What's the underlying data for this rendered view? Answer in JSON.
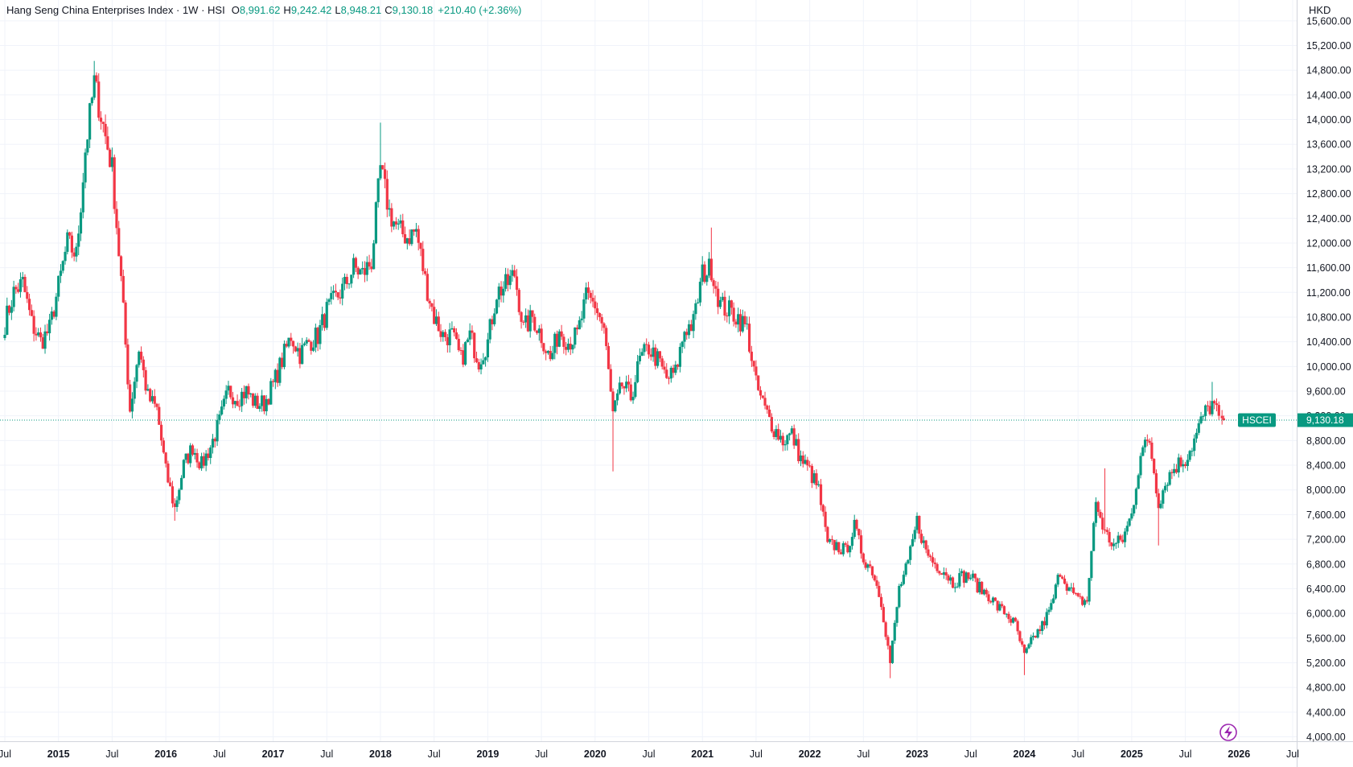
{
  "header": {
    "title": "Hang Seng China Enterprises Index · 1W · HSI",
    "open_key": "O",
    "open": "8,991.62",
    "high_key": "H",
    "high": "9,242.42",
    "low_key": "L",
    "low": "8,948.21",
    "close_key": "C",
    "close": "9,130.18",
    "change": "+210.40 (+2.36%)",
    "currency": "HKD"
  },
  "price_tag": {
    "symbol": "HSCEI",
    "value": 9130.18,
    "label": "9,130.18",
    "color": "#089981"
  },
  "colors": {
    "up": "#089981",
    "down": "#f23645",
    "grid": "#f0f3fa",
    "accent": "#9c27b0"
  },
  "chart_data": {
    "type": "candlestick",
    "interval": "1W",
    "x_range": [
      "2014-07",
      "2026-07"
    ],
    "ylim": [
      4000,
      15800
    ],
    "y_ticks": [
      4000,
      4400,
      4800,
      5200,
      5600,
      6000,
      6400,
      6800,
      7200,
      7600,
      8000,
      8400,
      8800,
      9200,
      9600,
      10000,
      10400,
      10800,
      11200,
      11600,
      12000,
      12400,
      12800,
      13200,
      13600,
      14000,
      14400,
      14800,
      15200,
      15600
    ],
    "y_tick_labels": [
      "4,000.00",
      "4,400.00",
      "4,800.00",
      "5,200.00",
      "5,600.00",
      "6,000.00",
      "6,400.00",
      "6,800.00",
      "7,200.00",
      "7,600.00",
      "8,000.00",
      "8,400.00",
      "8,800.00",
      "9,200.00",
      "9,600.00",
      "10,000.00",
      "10,400.00",
      "10,800.00",
      "11,200.00",
      "11,600.00",
      "12,000.00",
      "12,400.00",
      "12,800.00",
      "13,200.00",
      "13,600.00",
      "14,000.00",
      "14,400.00",
      "14,800.00",
      "15,200.00",
      "15,600.00"
    ],
    "x_ticks": [
      {
        "date": "2014-07",
        "label": "Jul",
        "year": false
      },
      {
        "date": "2015-01",
        "label": "2015",
        "year": true
      },
      {
        "date": "2015-07",
        "label": "Jul",
        "year": false
      },
      {
        "date": "2016-01",
        "label": "2016",
        "year": true
      },
      {
        "date": "2016-07",
        "label": "Jul",
        "year": false
      },
      {
        "date": "2017-01",
        "label": "2017",
        "year": true
      },
      {
        "date": "2017-07",
        "label": "Jul",
        "year": false
      },
      {
        "date": "2018-01",
        "label": "2018",
        "year": true
      },
      {
        "date": "2018-07",
        "label": "Jul",
        "year": false
      },
      {
        "date": "2019-01",
        "label": "2019",
        "year": true
      },
      {
        "date": "2019-07",
        "label": "Jul",
        "year": false
      },
      {
        "date": "2020-01",
        "label": "2020",
        "year": true
      },
      {
        "date": "2020-07",
        "label": "Jul",
        "year": false
      },
      {
        "date": "2021-01",
        "label": "2021",
        "year": true
      },
      {
        "date": "2021-07",
        "label": "Jul",
        "year": false
      },
      {
        "date": "2022-01",
        "label": "2022",
        "year": true
      },
      {
        "date": "2022-07",
        "label": "Jul",
        "year": false
      },
      {
        "date": "2023-01",
        "label": "2023",
        "year": true
      },
      {
        "date": "2023-07",
        "label": "Jul",
        "year": false
      },
      {
        "date": "2024-01",
        "label": "2024",
        "year": true
      },
      {
        "date": "2024-07",
        "label": "Jul",
        "year": false
      },
      {
        "date": "2025-01",
        "label": "2025",
        "year": true
      },
      {
        "date": "2025-07",
        "label": "Jul",
        "year": false
      },
      {
        "date": "2026-01",
        "label": "2026",
        "year": true
      },
      {
        "date": "2026-07",
        "label": "Jul",
        "year": false
      }
    ],
    "close_path": [
      [
        "2014-07",
        10700
      ],
      [
        "2014-08",
        11200
      ],
      [
        "2014-09",
        11350
      ],
      [
        "2014-10",
        10700
      ],
      [
        "2014-11",
        10400
      ],
      [
        "2014-12",
        10600
      ],
      [
        "2015-01",
        11300
      ],
      [
        "2015-02",
        12000
      ],
      [
        "2015-03",
        11800
      ],
      [
        "2015-04",
        13500
      ],
      [
        "2015-05",
        14600
      ],
      [
        "2015-06",
        13900
      ],
      [
        "2015-07",
        13200
      ],
      [
        "2015-08",
        11400
      ],
      [
        "2015-09",
        9300
      ],
      [
        "2015-10",
        10300
      ],
      [
        "2015-11",
        9500
      ],
      [
        "2015-12",
        9300
      ],
      [
        "2016-01",
        8300
      ],
      [
        "2016-02",
        7700
      ],
      [
        "2016-03",
        8400
      ],
      [
        "2016-04",
        8700
      ],
      [
        "2016-05",
        8400
      ],
      [
        "2016-06",
        8700
      ],
      [
        "2016-07",
        9100
      ],
      [
        "2016-08",
        9600
      ],
      [
        "2016-09",
        9500
      ],
      [
        "2016-10",
        9600
      ],
      [
        "2016-11",
        9400
      ],
      [
        "2016-12",
        9400
      ],
      [
        "2017-01",
        9700
      ],
      [
        "2017-02",
        10100
      ],
      [
        "2017-03",
        10500
      ],
      [
        "2017-04",
        10200
      ],
      [
        "2017-05",
        10400
      ],
      [
        "2017-06",
        10500
      ],
      [
        "2017-07",
        10900
      ],
      [
        "2017-08",
        11100
      ],
      [
        "2017-09",
        11300
      ],
      [
        "2017-10",
        11600
      ],
      [
        "2017-11",
        11500
      ],
      [
        "2017-12",
        11700
      ],
      [
        "2018-01",
        13200
      ],
      [
        "2018-02",
        12500
      ],
      [
        "2018-03",
        12200
      ],
      [
        "2018-04",
        12100
      ],
      [
        "2018-05",
        12200
      ],
      [
        "2018-06",
        11400
      ],
      [
        "2018-07",
        10800
      ],
      [
        "2018-08",
        10500
      ],
      [
        "2018-09",
        10500
      ],
      [
        "2018-10",
        10100
      ],
      [
        "2018-11",
        10500
      ],
      [
        "2018-12",
        10100
      ],
      [
        "2019-01",
        10400
      ],
      [
        "2019-02",
        11200
      ],
      [
        "2019-03",
        11300
      ],
      [
        "2019-04",
        11500
      ],
      [
        "2019-05",
        10600
      ],
      [
        "2019-06",
        10800
      ],
      [
        "2019-07",
        10500
      ],
      [
        "2019-08",
        10100
      ],
      [
        "2019-09",
        10600
      ],
      [
        "2019-10",
        10400
      ],
      [
        "2019-11",
        10500
      ],
      [
        "2019-12",
        11100
      ],
      [
        "2020-01",
        11000
      ],
      [
        "2020-02",
        10600
      ],
      [
        "2020-03",
        9200
      ],
      [
        "2020-04",
        9700
      ],
      [
        "2020-05",
        9500
      ],
      [
        "2020-06",
        10100
      ],
      [
        "2020-07",
        10300
      ],
      [
        "2020-08",
        10100
      ],
      [
        "2020-09",
        9800
      ],
      [
        "2020-10",
        9900
      ],
      [
        "2020-11",
        10600
      ],
      [
        "2020-12",
        10700
      ],
      [
        "2021-01",
        11500
      ],
      [
        "2021-02",
        11600
      ],
      [
        "2021-03",
        11000
      ],
      [
        "2021-04",
        10900
      ],
      [
        "2021-05",
        10800
      ],
      [
        "2021-06",
        10600
      ],
      [
        "2021-07",
        9700
      ],
      [
        "2021-08",
        9300
      ],
      [
        "2021-09",
        9000
      ],
      [
        "2021-10",
        8800
      ],
      [
        "2021-11",
        8900
      ],
      [
        "2021-12",
        8500
      ],
      [
        "2022-01",
        8300
      ],
      [
        "2022-02",
        8000
      ],
      [
        "2022-03",
        7100
      ],
      [
        "2022-04",
        7100
      ],
      [
        "2022-05",
        7000
      ],
      [
        "2022-06",
        7400
      ],
      [
        "2022-07",
        6900
      ],
      [
        "2022-08",
        6700
      ],
      [
        "2022-09",
        6200
      ],
      [
        "2022-10",
        5200
      ],
      [
        "2022-11",
        6400
      ],
      [
        "2022-12",
        6800
      ],
      [
        "2023-01",
        7500
      ],
      [
        "2023-02",
        7000
      ],
      [
        "2023-03",
        6800
      ],
      [
        "2023-04",
        6700
      ],
      [
        "2023-05",
        6500
      ],
      [
        "2023-06",
        6600
      ],
      [
        "2023-07",
        6600
      ],
      [
        "2023-08",
        6400
      ],
      [
        "2023-09",
        6300
      ],
      [
        "2023-10",
        6100
      ],
      [
        "2023-11",
        6000
      ],
      [
        "2023-12",
        5800
      ],
      [
        "2024-01",
        5300
      ],
      [
        "2024-02",
        5600
      ],
      [
        "2024-03",
        5800
      ],
      [
        "2024-04",
        6100
      ],
      [
        "2024-05",
        6700
      ],
      [
        "2024-06",
        6400
      ],
      [
        "2024-07",
        6200
      ],
      [
        "2024-08",
        6200
      ],
      [
        "2024-09",
        7800
      ],
      [
        "2024-10",
        7300
      ],
      [
        "2024-11",
        7100
      ],
      [
        "2024-12",
        7200
      ],
      [
        "2025-01",
        7600
      ],
      [
        "2025-02",
        8600
      ],
      [
        "2025-03",
        8800
      ],
      [
        "2025-04",
        7800
      ],
      [
        "2025-05",
        8200
      ],
      [
        "2025-06",
        8400
      ],
      [
        "2025-07",
        8500
      ],
      [
        "2025-08",
        8800
      ],
      [
        "2025-09",
        9200
      ],
      [
        "2025-10",
        9400
      ],
      [
        "2025-11",
        9100
      ]
    ],
    "extremes": [
      [
        "2015-05",
        14950
      ],
      [
        "2016-02",
        7500
      ],
      [
        "2018-01",
        13950
      ],
      [
        "2020-03",
        8300
      ],
      [
        "2021-02",
        12250
      ],
      [
        "2022-10",
        4950
      ],
      [
        "2024-01",
        5000
      ],
      [
        "2024-10",
        8350
      ],
      [
        "2025-04",
        7100
      ],
      [
        "2025-10",
        9750
      ]
    ]
  }
}
